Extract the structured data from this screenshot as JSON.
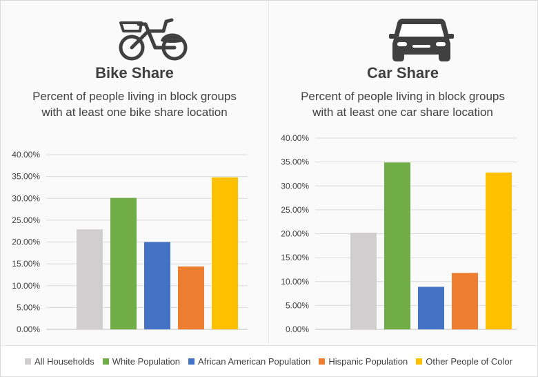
{
  "chart_data": [
    {
      "type": "bar",
      "title": "Bike Share",
      "subtitle": [
        "Percent of people living in block groups",
        "with at least one bike share location"
      ],
      "categories": [
        "All Households",
        "White Population",
        "African American Population",
        "Hispanic Population",
        "Other People of Color"
      ],
      "values": [
        22.9,
        30.1,
        20.0,
        14.4,
        34.8
      ],
      "ylim": [
        0,
        40
      ],
      "yticks": [
        "0.00%",
        "5.00%",
        "10.00%",
        "15.00%",
        "20.00%",
        "25.00%",
        "30.00%",
        "35.00%",
        "40.00%"
      ],
      "grid": true,
      "icon": "bicycle-icon"
    },
    {
      "type": "bar",
      "title": "Car Share",
      "subtitle": [
        "Percent of people living in block groups",
        "with at least one car share location"
      ],
      "categories": [
        "All Households",
        "White Population",
        "African American Population",
        "Hispanic Population",
        "Other People of Color"
      ],
      "values": [
        20.2,
        34.9,
        8.9,
        11.8,
        32.8
      ],
      "ylim": [
        0,
        40
      ],
      "yticks": [
        "0.00%",
        "5.00%",
        "10.00%",
        "15.00%",
        "20.00%",
        "25.00%",
        "30.00%",
        "35.00%",
        "40.00%"
      ],
      "grid": true,
      "icon": "car-icon"
    }
  ],
  "legend": {
    "placement": "bottom",
    "items": [
      {
        "label": "All Households",
        "color": "#d0cece"
      },
      {
        "label": "White Population",
        "color": "#70ad47"
      },
      {
        "label": "African American Population",
        "color": "#4472c4"
      },
      {
        "label": "Hispanic Population",
        "color": "#ed7d31"
      },
      {
        "label": "Other People of Color",
        "color": "#ffc000"
      }
    ]
  },
  "colors": {
    "text": "#404040",
    "icon": "#404040",
    "gridline": "#d9d9d9"
  }
}
